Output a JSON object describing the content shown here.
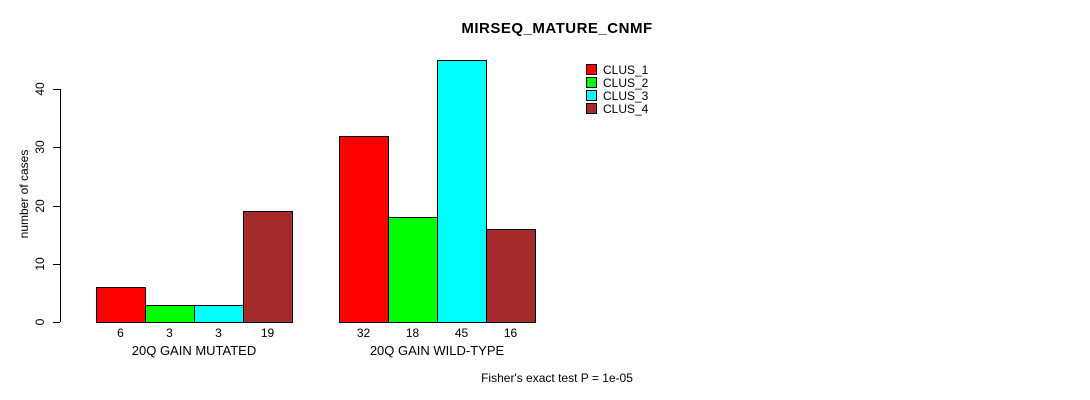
{
  "chart_data": {
    "type": "bar",
    "title": "MIRSEQ_MATURE_CNMF",
    "xlabel": "",
    "ylabel": "number of cases",
    "categories": [
      "20Q GAIN MUTATED",
      "20Q GAIN WILD-TYPE"
    ],
    "series": [
      {
        "name": "CLUS_1",
        "color": "#FF0000",
        "values": [
          6,
          32
        ]
      },
      {
        "name": "CLUS_2",
        "color": "#00FF00",
        "values": [
          3,
          18
        ]
      },
      {
        "name": "CLUS_3",
        "color": "#00FFFF",
        "values": [
          3,
          45
        ]
      },
      {
        "name": "CLUS_4",
        "color": "#A52A2A",
        "values": [
          19,
          16
        ]
      }
    ],
    "bar_value_labels": [
      [
        6,
        3,
        3,
        19
      ],
      [
        32,
        18,
        45,
        16
      ]
    ],
    "yticks": [
      0,
      10,
      20,
      30,
      40
    ],
    "ylim": [
      0,
      45
    ],
    "grid": false,
    "legend_position": "top-right",
    "annotation": "Fisher's exact test P = 1e-05"
  },
  "colors": {
    "background": "#FFFFFF",
    "axis": "#000000",
    "text": "#000000",
    "clus_1": "#FF0000",
    "clus_2": "#00FF00",
    "clus_3": "#00FFFF",
    "clus_4": "#A52A2A"
  }
}
